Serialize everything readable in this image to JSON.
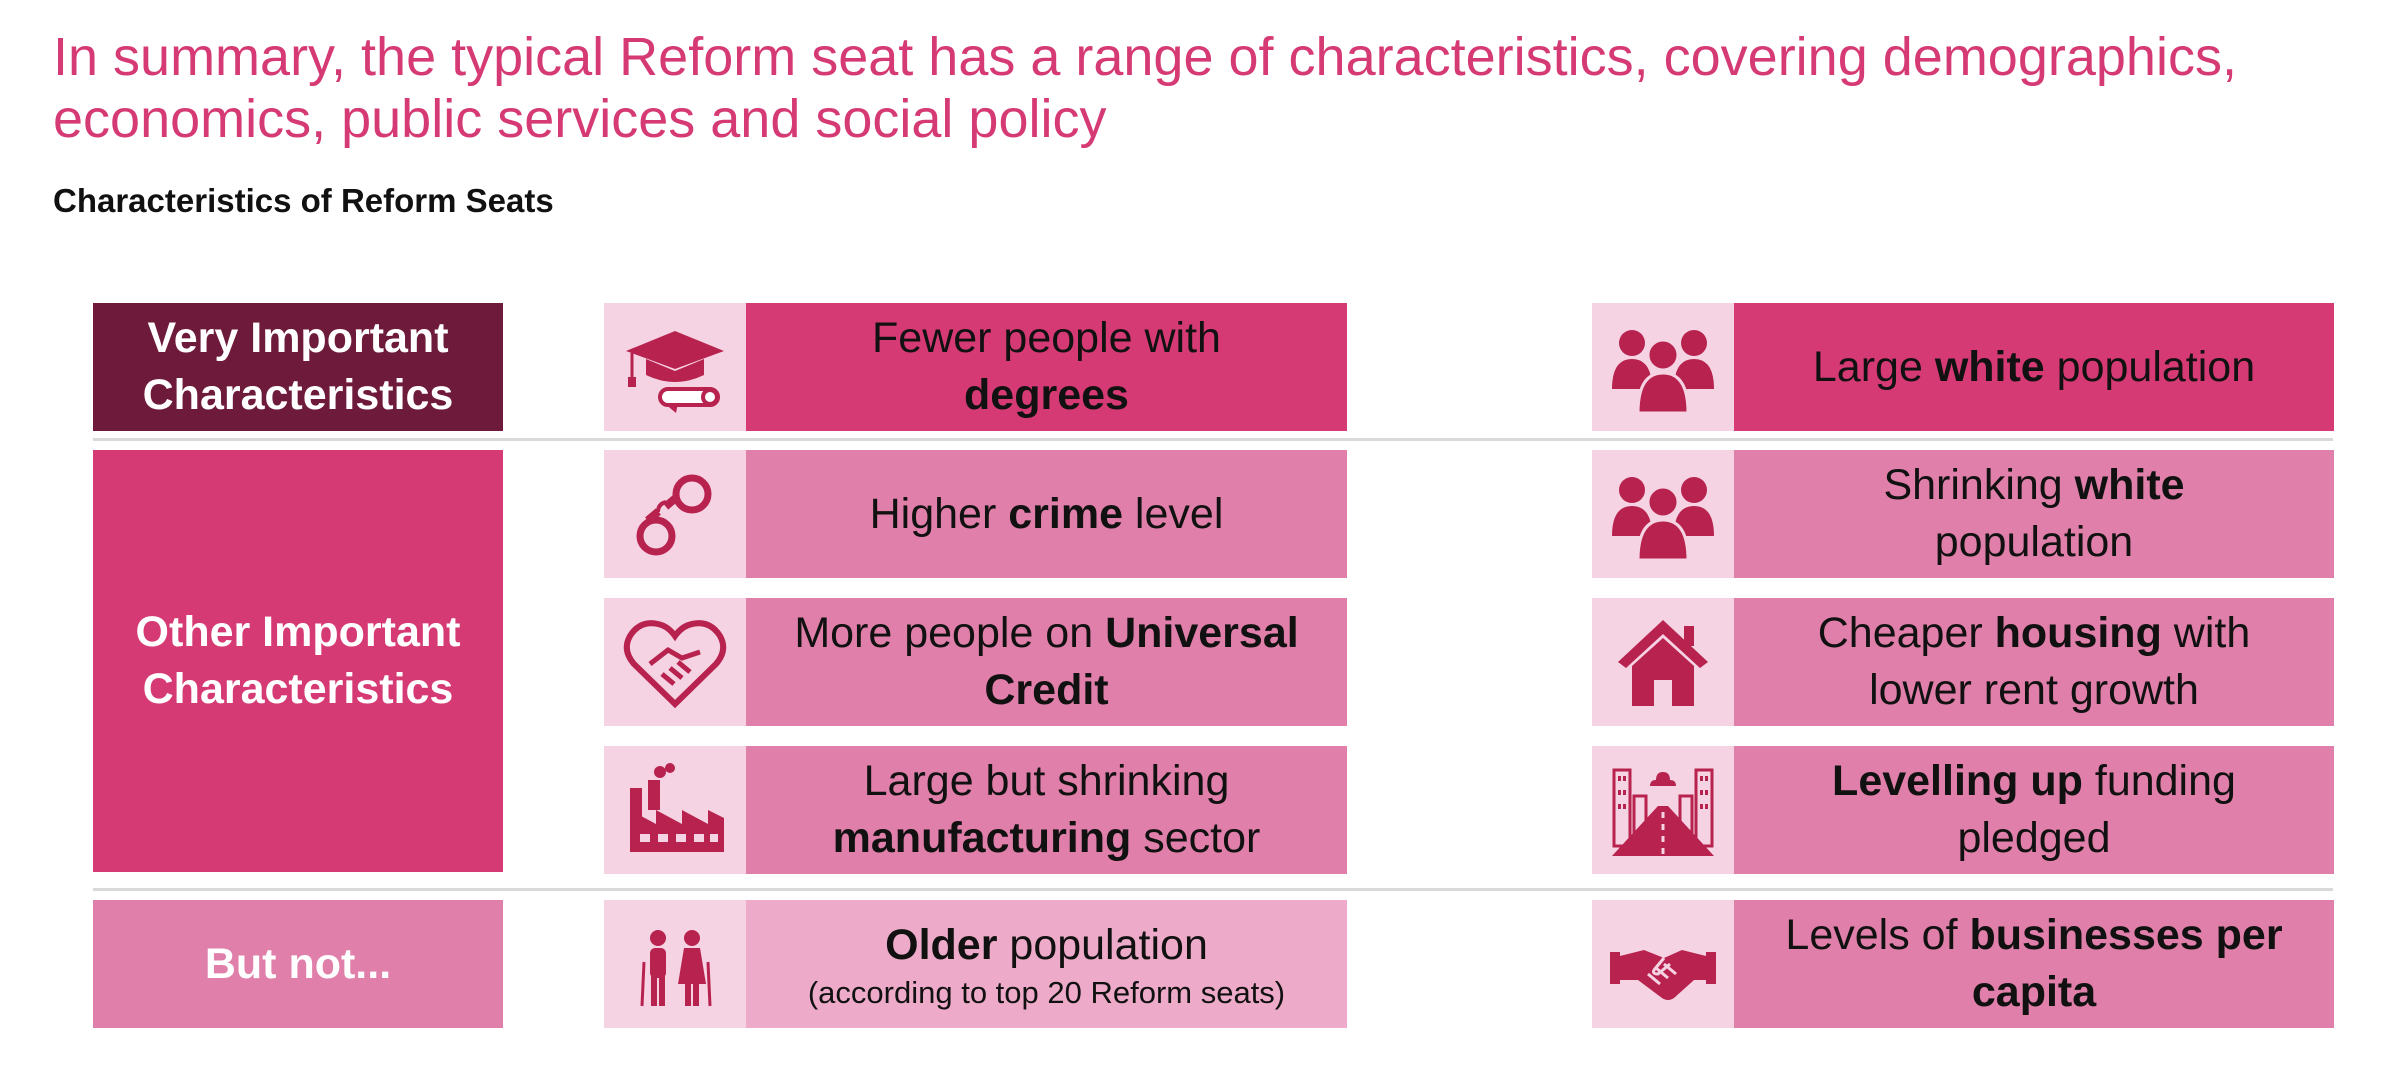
{
  "title": "In summary, the typical Reform seat has a range of characteristics, covering demographics, economics, public services and social policy",
  "subtitle": "Characteristics of Reform Seats",
  "colors": {
    "title": "#d63a74",
    "very_dark": "#6e1a3a",
    "strong_pink": "#d63a74",
    "mid_pink": "#e07fa9",
    "light_pink": "#eeabc9",
    "icon_bg": "#f5d3e2",
    "icon": "#b8224f"
  },
  "categories": {
    "very": {
      "line1": "Very Important",
      "line2": "Characteristics"
    },
    "other": {
      "line1": "Other Important",
      "line2": "Characteristics"
    },
    "not": {
      "label": "But not..."
    }
  },
  "items": {
    "degrees": {
      "icon": "graduation-cap-icon",
      "t1": "Fewer people with",
      "b1": "degrees"
    },
    "white": {
      "icon": "people-group-icon",
      "t1": "Large ",
      "b1": "white",
      "t2": " population"
    },
    "crime": {
      "icon": "handcuffs-icon",
      "t1": "Higher ",
      "b1": "crime",
      "t2": " level"
    },
    "shrinking_white": {
      "icon": "people-group-icon",
      "t1": "Shrinking ",
      "b1": "white",
      "t2": "population"
    },
    "universal_credit": {
      "icon": "heart-handshake-icon",
      "t1": "More people on ",
      "b1": "Universal",
      "b2": "Credit"
    },
    "housing": {
      "icon": "house-icon",
      "t1": "Cheaper ",
      "b1": "housing",
      "t2": " with",
      "t3": "lower rent growth"
    },
    "manufacturing": {
      "icon": "factory-icon",
      "t1": "Large but shrinking",
      "b1": "manufacturing",
      "t2": " sector"
    },
    "levelling_up": {
      "icon": "city-road-icon",
      "b1": "Levelling up",
      "t1": " funding",
      "t2": "pledged"
    },
    "older": {
      "icon": "elderly-couple-icon",
      "b1": "Older",
      "t1": " population",
      "note": "(according to top 20 Reform seats)"
    },
    "businesses": {
      "icon": "handshake-icon",
      "t1": "Levels of ",
      "b1": "businesses per",
      "b2": "capita"
    }
  }
}
